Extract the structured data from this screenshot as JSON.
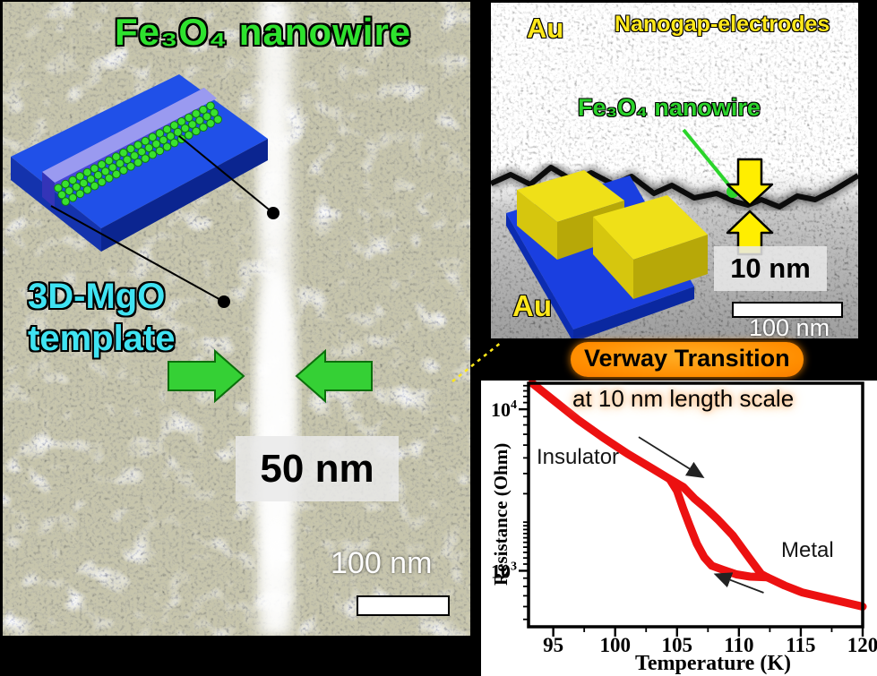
{
  "page": {
    "background": "#000000"
  },
  "left_panel": {
    "title": "Fe₃O₄ nanowire",
    "title_color": "#2ee22e",
    "template_label_line1": "3D-MgO",
    "template_label_line2": "template",
    "template_label_color": "#3fe3f2",
    "width_label": "50 nm",
    "scalebar_label": "100 nm",
    "arrow_color": "#35d035"
  },
  "right_panel": {
    "au_label_top": "Au",
    "au_label_bottom": "Au",
    "title": "Nanogap-electrodes",
    "title_color": "#ffe81a",
    "nanowire_label": "Fe₃O₄ nanowire",
    "nanowire_label_color": "#2bd42b",
    "gap_label": "10 nm",
    "scalebar_label": "100 nm",
    "gap_arrow_color": "#ffee00"
  },
  "transition": {
    "badge_label": "Verway Transition",
    "badge_color": "#ff8d00"
  },
  "chart_data": {
    "type": "line",
    "title": "Verway Transition",
    "subtitle": "at 10 nm length scale",
    "xlabel": "Temperature (K)",
    "ylabel": "Resistance (Ohm)",
    "xlim": [
      93,
      120
    ],
    "ylim": [
      450,
      14500
    ],
    "yscale": "log",
    "grid": false,
    "x_ticks": [
      95,
      100,
      105,
      110,
      115,
      120
    ],
    "x_minor_offset": 2.5,
    "y_ticks": [
      {
        "value": 1000,
        "base": "10",
        "exp": "3",
        "label": "10³"
      },
      {
        "value": 10000,
        "base": "10",
        "exp": "4",
        "label": "10⁴"
      }
    ],
    "line_color": "#ec1111",
    "series": [
      {
        "name": "warming branch (insulator to metal)",
        "x": [
          93.3,
          95,
          97,
          99,
          101,
          103,
          104.4,
          105.5,
          106.4,
          107.3,
          108.3,
          109.5,
          110.8,
          111.8,
          112.3,
          113.7,
          115.1,
          117.3,
          120
        ],
        "y": [
          14500,
          11400,
          8600,
          6700,
          5300,
          4300,
          3700,
          3300,
          2800,
          2450,
          2075,
          1660,
          1210,
          955,
          910,
          810,
          735,
          670,
          600
        ]
      },
      {
        "name": "cooling branch (hysteresis)",
        "x": [
          104.4,
          105.0,
          105.5,
          106.0,
          106.6,
          107.2,
          107.8,
          108.7,
          109.8,
          110.9,
          112.3
        ],
        "y": [
          3700,
          3120,
          2420,
          1920,
          1470,
          1210,
          1075,
          1015,
          950,
          920,
          910
        ]
      }
    ],
    "labels": {
      "insulator": "Insulator",
      "metal": "Metal"
    },
    "arrows": [
      {
        "from_t": 101.9,
        "from_r": 6730,
        "to_t": 107.0,
        "to_r": 3840
      },
      {
        "from_t": 112.0,
        "from_r": 731,
        "to_t": 108.2,
        "to_r": 944
      }
    ],
    "legend_position": "none"
  }
}
